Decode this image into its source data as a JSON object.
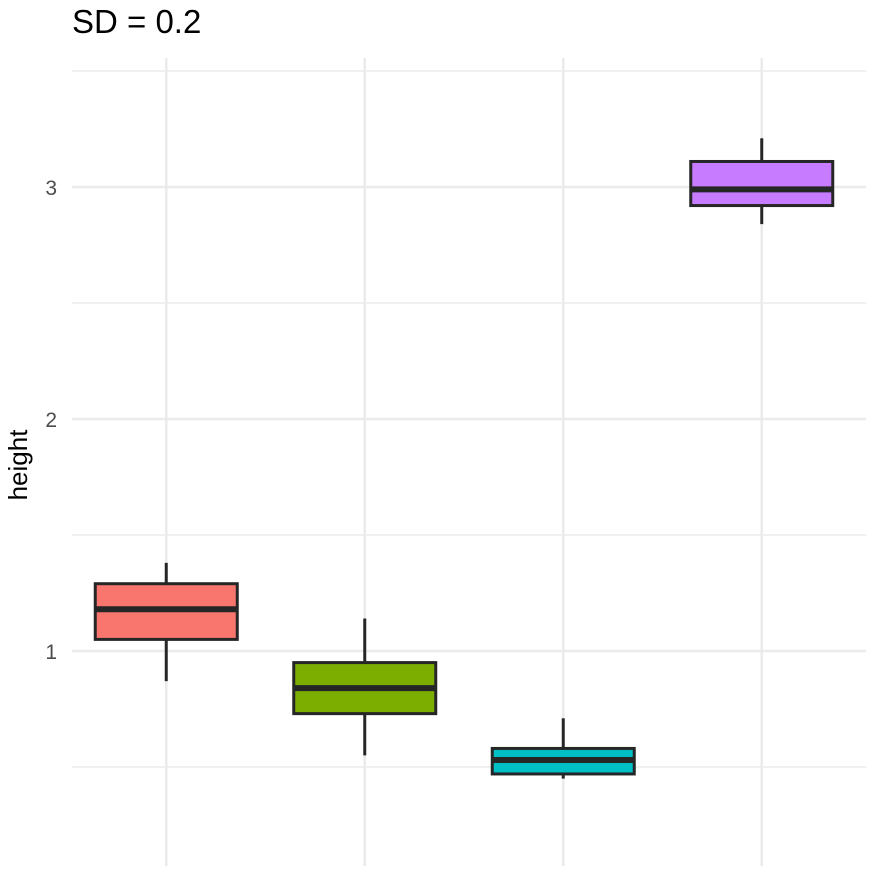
{
  "chart_data": {
    "type": "boxplot",
    "title": "SD = 0.2",
    "xlabel": "",
    "ylabel": "height",
    "ylim": [
      0.26,
      3.5
    ],
    "y_ticks": [
      1,
      2,
      3
    ],
    "y_tick_labels": [
      "1",
      "2",
      "3"
    ],
    "grid": true,
    "categories": [
      "",
      "",
      "",
      ""
    ],
    "series": [
      {
        "color": "#F8766D",
        "values": [
          {
            "min": 0.87,
            "q1": 1.05,
            "median": 1.18,
            "q3": 1.29,
            "max": 1.38
          },
          {
            "min": 0.55,
            "q1": 0.73,
            "median": 0.84,
            "q3": 0.95,
            "max": 1.14
          },
          {
            "min": 0.45,
            "q1": 0.47,
            "median": 0.53,
            "q3": 0.58,
            "max": 0.71
          },
          {
            "min": 2.84,
            "q1": 2.92,
            "median": 2.99,
            "q3": 3.11,
            "max": 3.21
          }
        ]
      }
    ],
    "box_colors": [
      "#F8766D",
      "#7CAE00",
      "#00BFC4",
      "#C77CFF"
    ]
  }
}
